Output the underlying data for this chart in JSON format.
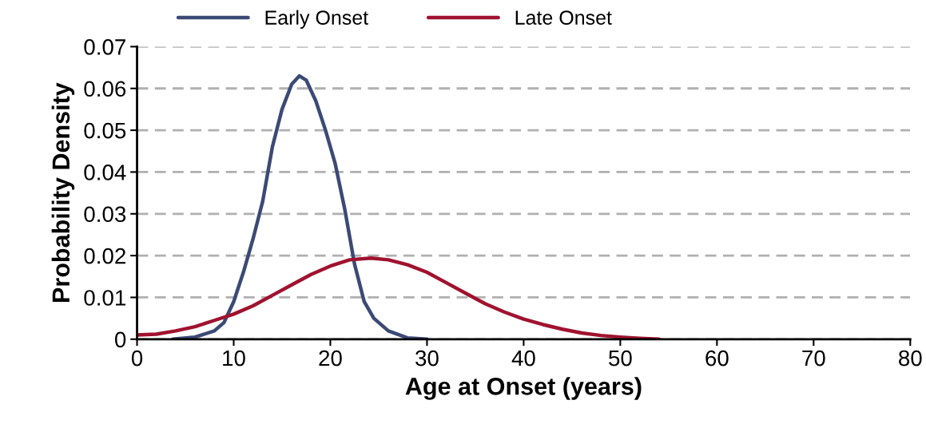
{
  "chart_data": {
    "type": "line",
    "xlabel": "Age at Onset (years)",
    "ylabel": "Probability Density",
    "xlim": [
      0,
      80
    ],
    "xticks": [
      0,
      10,
      20,
      30,
      40,
      50,
      60,
      70,
      80
    ],
    "ylim": [
      0,
      0.07
    ],
    "yticks": [
      0,
      0.01,
      0.02,
      0.03,
      0.04,
      0.05,
      0.06,
      0.07
    ],
    "grid": "y",
    "legend": "top left",
    "marker": "none",
    "line_style": "solid",
    "series": [
      {
        "name": "Early Onset",
        "color": "#3b4a75",
        "x": [
          3.7,
          6,
          8,
          9,
          10,
          11,
          12,
          13,
          14,
          15,
          16,
          16.8,
          17.5,
          18.5,
          19.5,
          20.5,
          21.5,
          22.5,
          23.5,
          24.5,
          26,
          28,
          30
        ],
        "values": [
          0,
          0.0005,
          0.002,
          0.004,
          0.009,
          0.016,
          0.024,
          0.033,
          0.046,
          0.055,
          0.061,
          0.063,
          0.062,
          0.057,
          0.05,
          0.042,
          0.031,
          0.018,
          0.009,
          0.005,
          0.002,
          0.0003,
          0
        ]
      },
      {
        "name": "Late Onset",
        "color": "#a0122f",
        "x": [
          0,
          2,
          4,
          6,
          8,
          10,
          12,
          14,
          16,
          18,
          20,
          22,
          24.2,
          26,
          28,
          30,
          32,
          34,
          36,
          38,
          40,
          42,
          44,
          46,
          48,
          50,
          52,
          54
        ],
        "values": [
          0.001,
          0.0012,
          0.002,
          0.003,
          0.0045,
          0.006,
          0.008,
          0.0105,
          0.013,
          0.0155,
          0.0175,
          0.019,
          0.0194,
          0.019,
          0.0178,
          0.016,
          0.0135,
          0.011,
          0.0085,
          0.0065,
          0.0048,
          0.0035,
          0.0024,
          0.0015,
          0.0009,
          0.0005,
          0.0002,
          0
        ]
      }
    ]
  }
}
